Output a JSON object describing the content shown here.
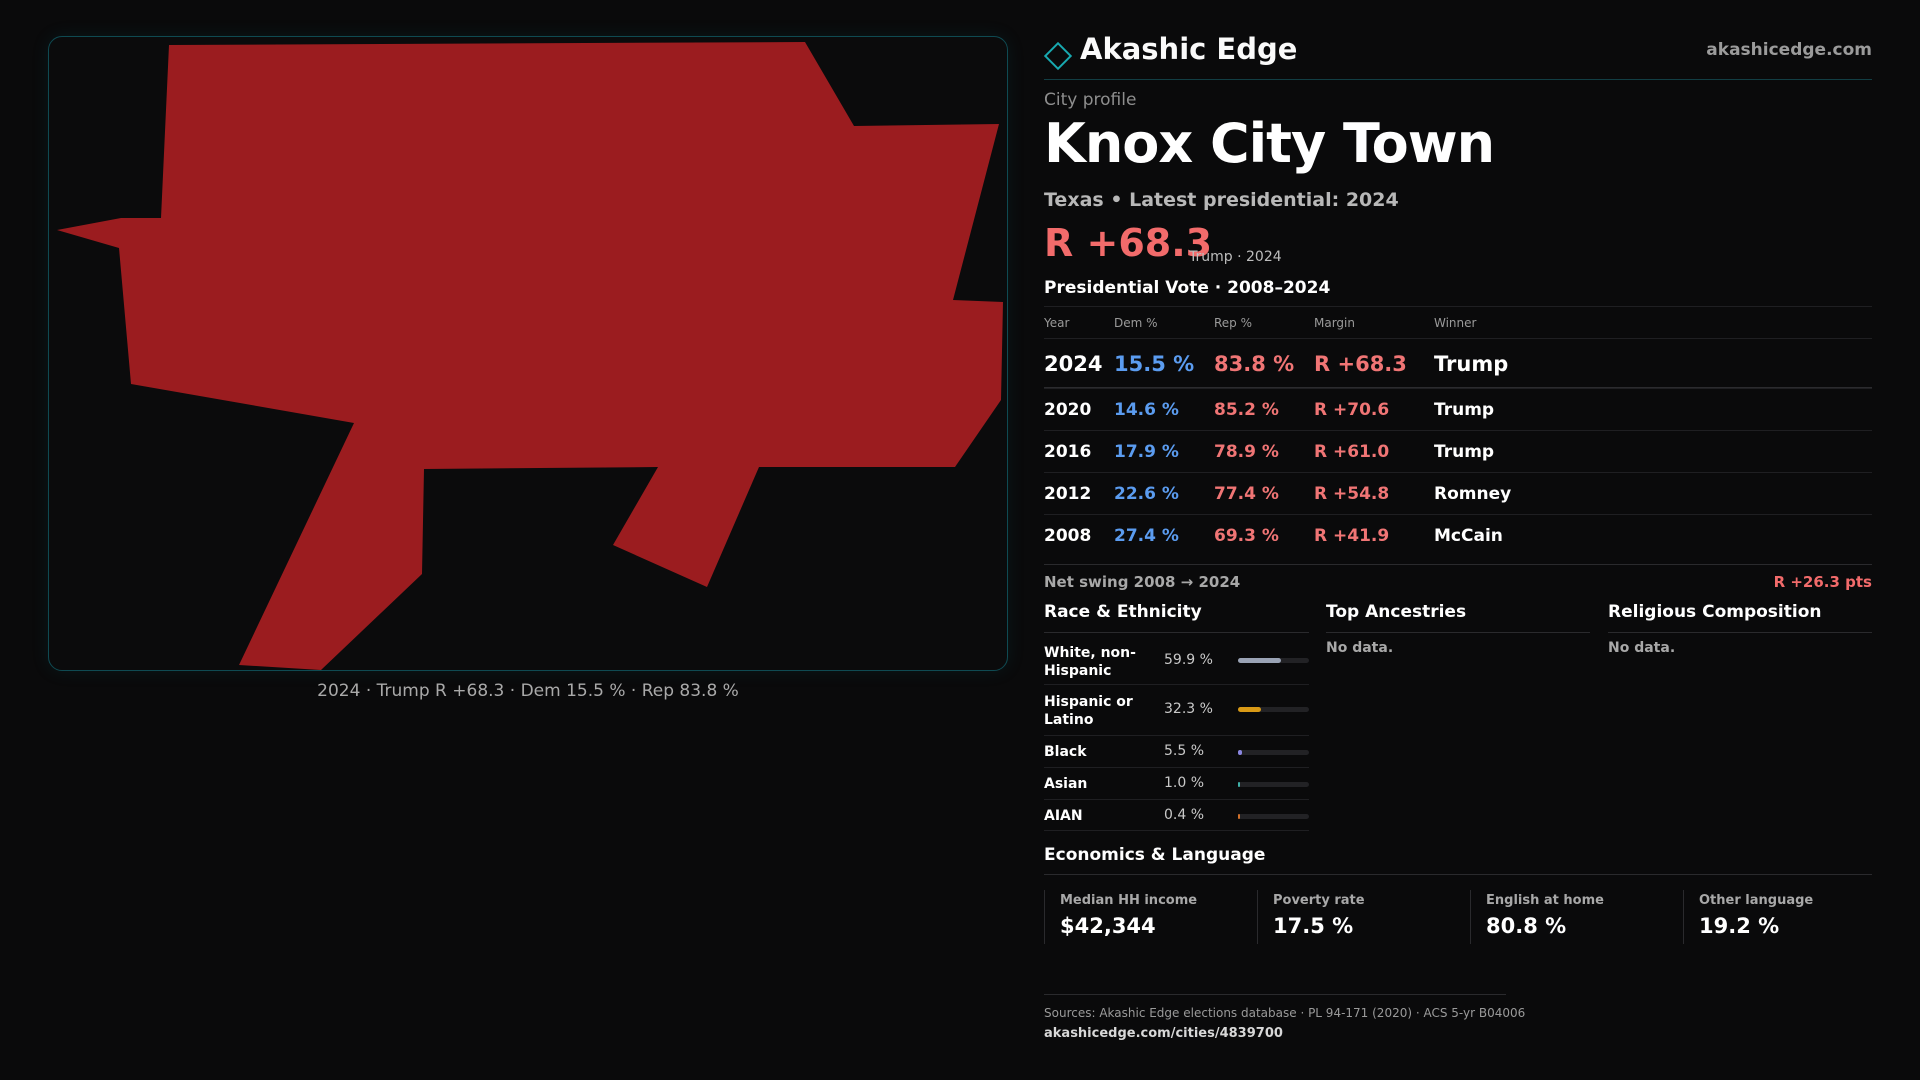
{
  "brand": {
    "name": "Akashic Edge",
    "url": "akashicedge.com"
  },
  "profile": {
    "kicker": "City profile",
    "title": "Knox City Town",
    "subtitle": "Texas • Latest presidential: 2024",
    "margin": "R +68.3",
    "margin_sub": "Trump · 2024"
  },
  "map": {
    "fill_color": "#9b1c1f",
    "caption": "2024 · Trump R +68.3 · Dem 15.5 % · Rep 83.8 %"
  },
  "vote": {
    "heading": "Presidential Vote · 2008–2024",
    "columns": [
      "Year",
      "Dem %",
      "Rep %",
      "Margin",
      "Winner"
    ],
    "rows": [
      {
        "year": "2024",
        "dem": "15.5 %",
        "rep": "83.8 %",
        "margin": "R +68.3",
        "winner": "Trump"
      },
      {
        "year": "2020",
        "dem": "14.6 %",
        "rep": "85.2 %",
        "margin": "R +70.6",
        "winner": "Trump"
      },
      {
        "year": "2016",
        "dem": "17.9 %",
        "rep": "78.9 %",
        "margin": "R +61.0",
        "winner": "Trump"
      },
      {
        "year": "2012",
        "dem": "22.6 %",
        "rep": "77.4 %",
        "margin": "R +54.8",
        "winner": "Romney"
      },
      {
        "year": "2008",
        "dem": "27.4 %",
        "rep": "69.3 %",
        "margin": "R +41.9",
        "winner": "McCain"
      }
    ],
    "swing_label": "Net swing 2008 → 2024",
    "swing_value": "R +26.3 pts",
    "dem_color": "#5b9cf0",
    "rep_color": "#f07575"
  },
  "race": {
    "title": "Race & Ethnicity",
    "items": [
      {
        "label": "White, non-Hispanic",
        "pct": "59.9 %",
        "value": 59.9,
        "color": "#9aa3b5"
      },
      {
        "label": "Hispanic or Latino",
        "pct": "32.3 %",
        "value": 32.3,
        "color": "#d99a16"
      },
      {
        "label": "Black",
        "pct": "5.5 %",
        "value": 5.5,
        "color": "#8a86e0"
      },
      {
        "label": "Asian",
        "pct": "1.0 %",
        "value": 1.0,
        "color": "#3fb0a8"
      },
      {
        "label": "AIAN",
        "pct": "0.4 %",
        "value": 0.4,
        "color": "#d0702a"
      }
    ]
  },
  "ancestries": {
    "title": "Top Ancestries",
    "empty": "No data."
  },
  "religion": {
    "title": "Religious Composition",
    "empty": "No data."
  },
  "economics": {
    "title": "Economics & Language",
    "stats": [
      {
        "label": "Median HH income",
        "value": "$42,344"
      },
      {
        "label": "Poverty rate",
        "value": "17.5 %"
      },
      {
        "label": "English at home",
        "value": "80.8 %"
      },
      {
        "label": "Other language",
        "value": "19.2 %"
      }
    ]
  },
  "footer": {
    "sources": "Sources: Akashic Edge elections database · PL 94-171 (2020) · ACS 5-yr B04006",
    "url": "akashicedge.com/cities/4839700"
  }
}
